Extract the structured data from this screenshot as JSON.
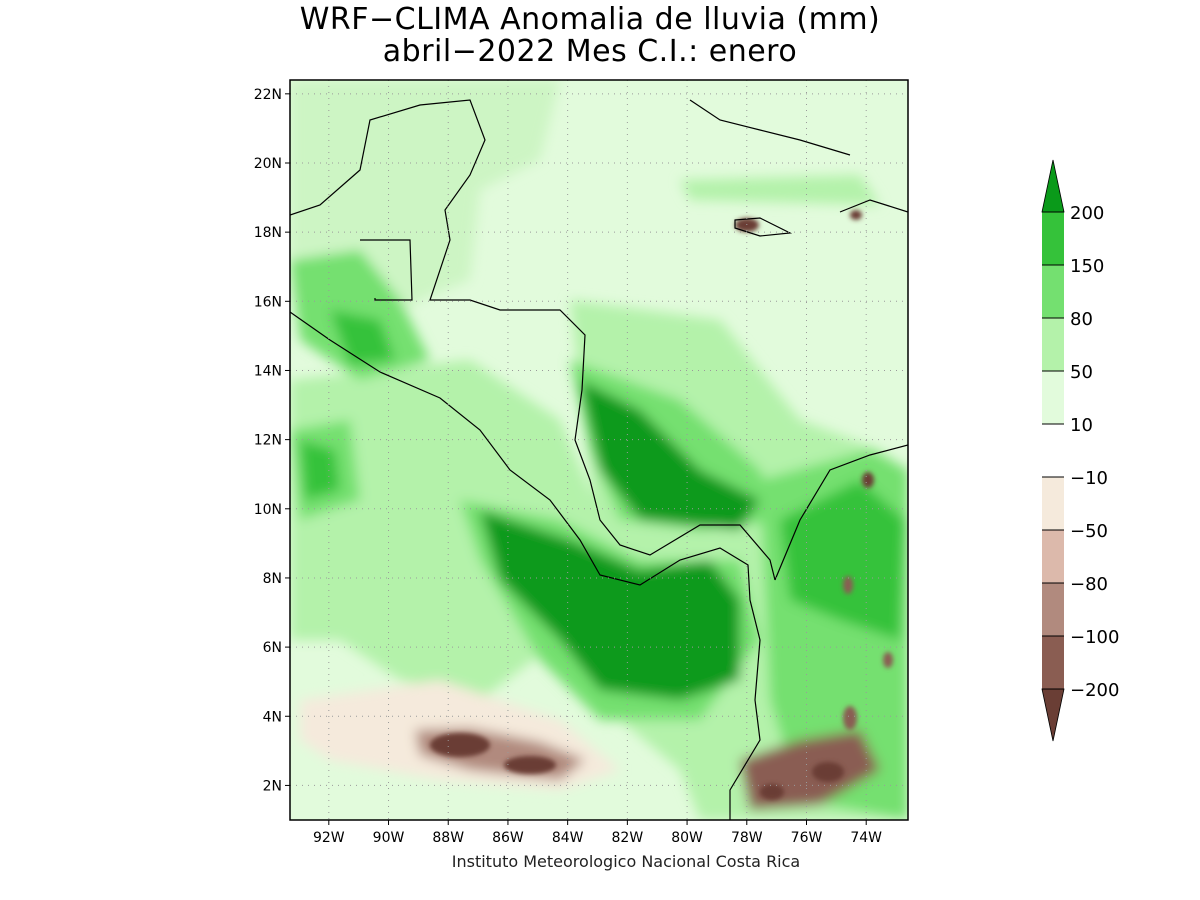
{
  "title": {
    "line1": "WRF−CLIMA Anomalia de lluvia (mm)",
    "line2": "abril−2022 Mes C.I.: enero"
  },
  "credit": "Instituto Meteorologico Nacional Costa Rica",
  "map": {
    "lat_ticks": [
      {
        "label": "22N",
        "value": 22
      },
      {
        "label": "20N",
        "value": 20
      },
      {
        "label": "18N",
        "value": 18
      },
      {
        "label": "16N",
        "value": 16
      },
      {
        "label": "14N",
        "value": 14
      },
      {
        "label": "12N",
        "value": 12
      },
      {
        "label": "10N",
        "value": 10
      },
      {
        "label": "8N",
        "value": 8
      },
      {
        "label": "6N",
        "value": 6
      },
      {
        "label": "4N",
        "value": 4
      },
      {
        "label": "2N",
        "value": 2
      }
    ],
    "lon_ticks": [
      {
        "label": "92W",
        "value": -92
      },
      {
        "label": "90W",
        "value": -90
      },
      {
        "label": "88W",
        "value": -88
      },
      {
        "label": "86W",
        "value": -86
      },
      {
        "label": "84W",
        "value": -84
      },
      {
        "label": "82W",
        "value": -82
      },
      {
        "label": "80W",
        "value": -80
      },
      {
        "label": "78W",
        "value": -78
      },
      {
        "label": "76W",
        "value": -76
      },
      {
        "label": "74W",
        "value": -74
      }
    ],
    "lat_range": [
      1,
      22.4
    ],
    "lon_range": [
      -93.3,
      -72.6
    ],
    "grid": true
  },
  "colorbar": {
    "levels": [
      "200",
      "150",
      "80",
      "50",
      "10",
      "−10",
      "−50",
      "−80",
      "−100",
      "−200"
    ],
    "colors": [
      "#0a9a1a",
      "#35c23a",
      "#74e070",
      "#b4f2aa",
      "#e2fbdc",
      "#ffffff",
      "#f5eadc",
      "#dcb9ab",
      "#b18a7e",
      "#8a5d52",
      "#6a3e35"
    ]
  }
}
